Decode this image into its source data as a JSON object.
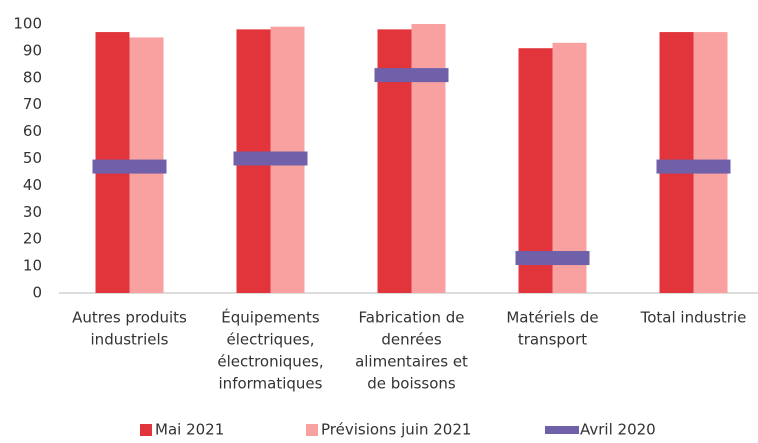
{
  "chart_data": {
    "type": "bar",
    "categories": [
      [
        "Autres produits",
        "industriels"
      ],
      [
        "Équipements",
        "électriques,",
        "électroniques,",
        "informatiques"
      ],
      [
        "Fabrication de",
        "denrées",
        "alimentaires et",
        "de boissons"
      ],
      [
        "Matériels de",
        "transport"
      ],
      [
        "Total industrie"
      ]
    ],
    "series": [
      {
        "name": "Mai 2021",
        "color": "#e1343b",
        "kind": "bar",
        "values": [
          97,
          98,
          98,
          91,
          97
        ]
      },
      {
        "name": "Prévisions juin 2021",
        "color": "#f9a0a0",
        "kind": "bar",
        "values": [
          95,
          99,
          100,
          93,
          97
        ]
      },
      {
        "name": "Avril 2020",
        "color": "#6f60a9",
        "kind": "marker",
        "values": [
          47,
          50,
          81,
          13,
          47
        ]
      }
    ],
    "ylim": [
      0,
      100
    ],
    "yticks": [
      0,
      10,
      20,
      30,
      40,
      50,
      60,
      70,
      80,
      90,
      100
    ],
    "grid": false,
    "legend": "bottom"
  }
}
